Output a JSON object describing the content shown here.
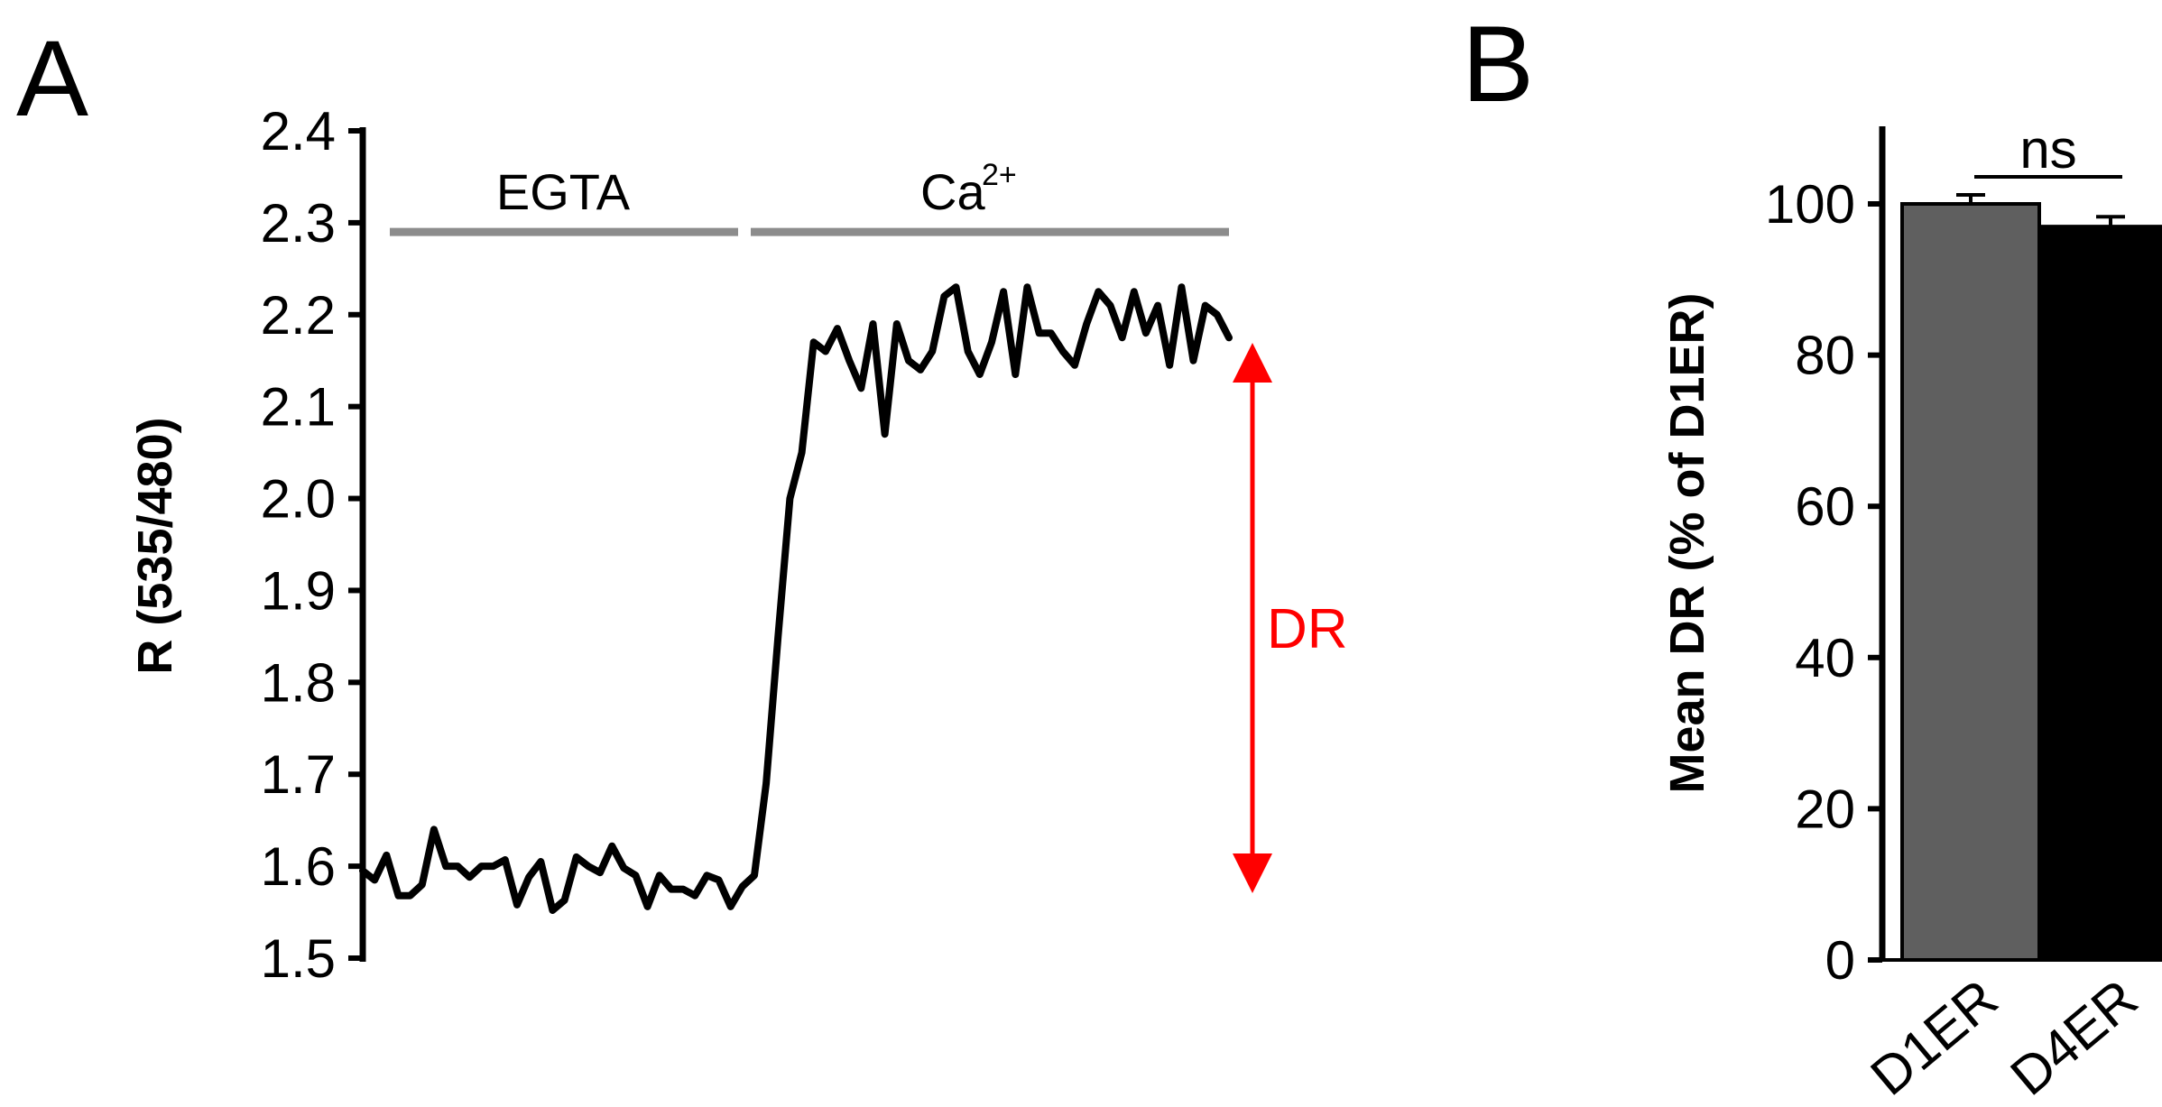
{
  "panel_a": {
    "label": "A"
  },
  "panel_b": {
    "label": "B"
  },
  "chart_data": [
    {
      "type": "line",
      "panel": "A",
      "ylabel": "R (535/480)",
      "ylim": [
        1.5,
        2.4
      ],
      "yticks": [
        "1.5",
        "1.6",
        "1.7",
        "1.8",
        "1.9",
        "2.0",
        "2.1",
        "2.2",
        "2.3",
        "2.4"
      ],
      "conditions": [
        {
          "label": "EGTA",
          "sup": ""
        },
        {
          "label": "Ca",
          "sup": "2+"
        }
      ],
      "annotation": "DR",
      "colors": {
        "trace": "#000000",
        "bar": "#8c8c8c",
        "arrow": "#ff0000"
      },
      "series": [
        {
          "values": [
            1.595,
            1.585,
            1.612,
            1.568,
            1.568,
            1.58,
            1.64,
            1.6,
            1.6,
            1.588,
            1.6,
            1.6,
            1.607,
            1.558,
            1.588,
            1.605,
            1.552,
            1.563,
            1.61,
            1.6,
            1.593,
            1.622,
            1.598,
            1.59,
            1.556,
            1.59,
            1.575,
            1.575,
            1.568,
            1.59,
            1.585,
            1.556,
            1.578,
            1.59,
            1.69,
            1.85,
            2.0,
            2.05,
            2.17,
            2.16,
            2.185,
            2.15,
            2.12,
            2.19,
            2.07,
            2.19,
            2.15,
            2.14,
            2.16,
            2.22,
            2.23,
            2.16,
            2.135,
            2.17,
            2.225,
            2.135,
            2.23,
            2.18,
            2.18,
            2.16,
            2.145,
            2.19,
            2.225,
            2.21,
            2.175,
            2.225,
            2.18,
            2.21,
            2.145,
            2.23,
            2.15,
            2.21,
            2.2,
            2.175
          ]
        }
      ]
    },
    {
      "type": "bar",
      "panel": "B",
      "ylabel": "Mean DR (% of D1ER)",
      "ylim": [
        0,
        100
      ],
      "yticks": [
        "0",
        "20",
        "40",
        "60",
        "80",
        "100"
      ],
      "categories": [
        "D1ER",
        "D4ER"
      ],
      "values": [
        100,
        97
      ],
      "errors": [
        1.2,
        1.3
      ],
      "bar_colors": [
        "#5f5f5f",
        "#000000"
      ],
      "significance": "ns"
    }
  ]
}
